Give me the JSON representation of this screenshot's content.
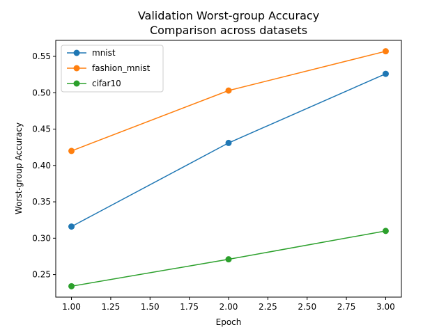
{
  "chart_data": {
    "type": "line",
    "title": "Validation Worst-group Accuracy",
    "subtitle": "Comparison across datasets",
    "xlabel": "Epoch",
    "ylabel": "Worst-group Accuracy",
    "xlim": [
      0.9,
      3.1
    ],
    "ylim": [
      0.219,
      0.572
    ],
    "xticks": [
      1.0,
      1.25,
      1.5,
      1.75,
      2.0,
      2.25,
      2.5,
      2.75,
      3.0
    ],
    "xtick_labels": [
      "1.00",
      "1.25",
      "1.50",
      "1.75",
      "2.00",
      "2.25",
      "2.50",
      "2.75",
      "3.00"
    ],
    "yticks": [
      0.25,
      0.3,
      0.35,
      0.4,
      0.45,
      0.5,
      0.55
    ],
    "ytick_labels": [
      "0.25",
      "0.30",
      "0.35",
      "0.40",
      "0.45",
      "0.50",
      "0.55"
    ],
    "grid": false,
    "legend_position": "top-left",
    "x": [
      1,
      2,
      3
    ],
    "series": [
      {
        "name": "mnist",
        "color": "#1f77b4",
        "values": [
          0.316,
          0.431,
          0.526
        ]
      },
      {
        "name": "fashion_mnist",
        "color": "#ff7f0e",
        "values": [
          0.42,
          0.503,
          0.557
        ]
      },
      {
        "name": "cifar10",
        "color": "#2ca02c",
        "values": [
          0.234,
          0.271,
          0.31
        ]
      }
    ]
  }
}
